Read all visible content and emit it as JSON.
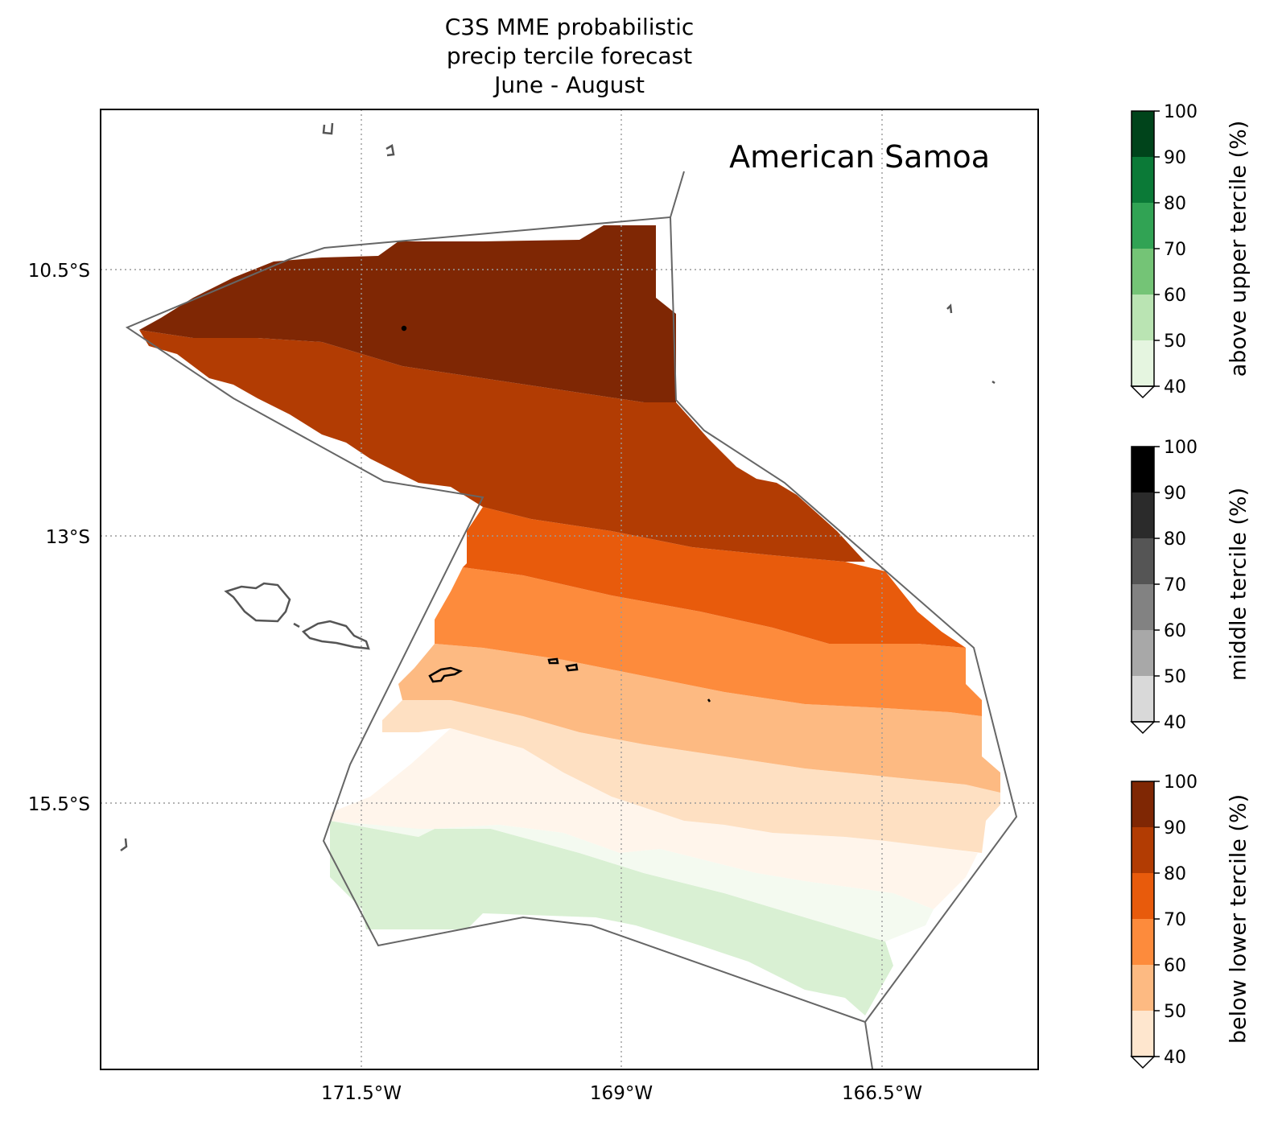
{
  "title": {
    "line1": "C3S MME probabilistic",
    "line2": "precip tercile forecast",
    "line3": "June - August"
  },
  "region_label": "American Samoa",
  "map": {
    "lat_ticks": [
      "10.5°S",
      "13°S",
      "15.5°S"
    ],
    "lon_ticks": [
      "171.5°W",
      "169°W",
      "166.5°W"
    ],
    "gridlines": "dotted",
    "colors": {
      "below_90_100": "#7f2704",
      "below_80_90": "#b23c03",
      "below_70_80": "#e85b0c",
      "below_60_70": "#fd8b3c",
      "below_50_60": "#fdba82",
      "below_40_50": "#fee0c2",
      "below_lt40": "#fff5eb",
      "above_40_50": "#d9f0d3",
      "above_lt40": "#f4faf0",
      "eez_boundary": "#666666",
      "coastline_samoa": "#555555",
      "coastline_american_samoa": "#000000"
    }
  },
  "colorbars": [
    {
      "label": "above upper tercile (%)",
      "ticks": [
        "100",
        "90",
        "80",
        "70",
        "60",
        "50",
        "40"
      ],
      "colors": [
        "#e5f5e0",
        "#bae4b3",
        "#74c476",
        "#31a354",
        "#0b7a37",
        "#00441b"
      ]
    },
    {
      "label": "middle tercile (%)",
      "ticks": [
        "100",
        "90",
        "80",
        "70",
        "60",
        "50",
        "40"
      ],
      "colors": [
        "#d9d9d9",
        "#a8a8a8",
        "#828282",
        "#555555",
        "#2b2b2b",
        "#000000"
      ]
    },
    {
      "label": "below lower tercile (%)",
      "ticks": [
        "100",
        "90",
        "80",
        "70",
        "60",
        "50",
        "40"
      ],
      "colors": [
        "#fee6ce",
        "#fdba82",
        "#fd8b3c",
        "#e85b0c",
        "#b23c03",
        "#7f2704"
      ]
    }
  ]
}
